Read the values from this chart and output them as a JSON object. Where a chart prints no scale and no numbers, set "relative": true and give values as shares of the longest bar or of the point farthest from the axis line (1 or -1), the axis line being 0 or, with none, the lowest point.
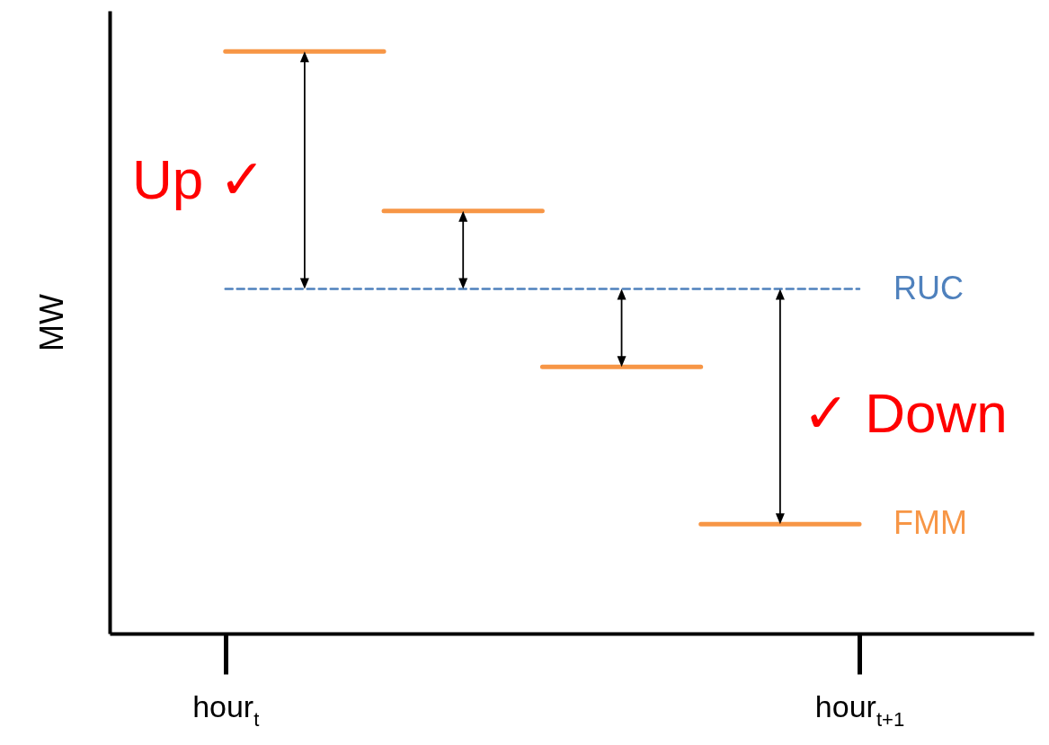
{
  "chart_data": {
    "type": "step",
    "relative": true,
    "ylabel": "MW",
    "categories": [
      "hour$_{t}$",
      null,
      null,
      null,
      "hour$_{t+1}$"
    ],
    "grid": false,
    "marker": "none",
    "series": [
      {
        "name": "RUC",
        "type": "line",
        "color": "#4f81bd",
        "line_style": "dashed",
        "values": [
          0.592,
          0.592,
          0.592,
          0.592,
          0.592
        ]
      },
      {
        "name": "FMM",
        "color": "#f79646",
        "line_style": "solid",
        "values": [
          1,
          0.726,
          0.458,
          0.188,
          0.188
        ]
      }
    ],
    "annotations": [
      "Up ✓",
      "✓ Down"
    ]
  }
}
